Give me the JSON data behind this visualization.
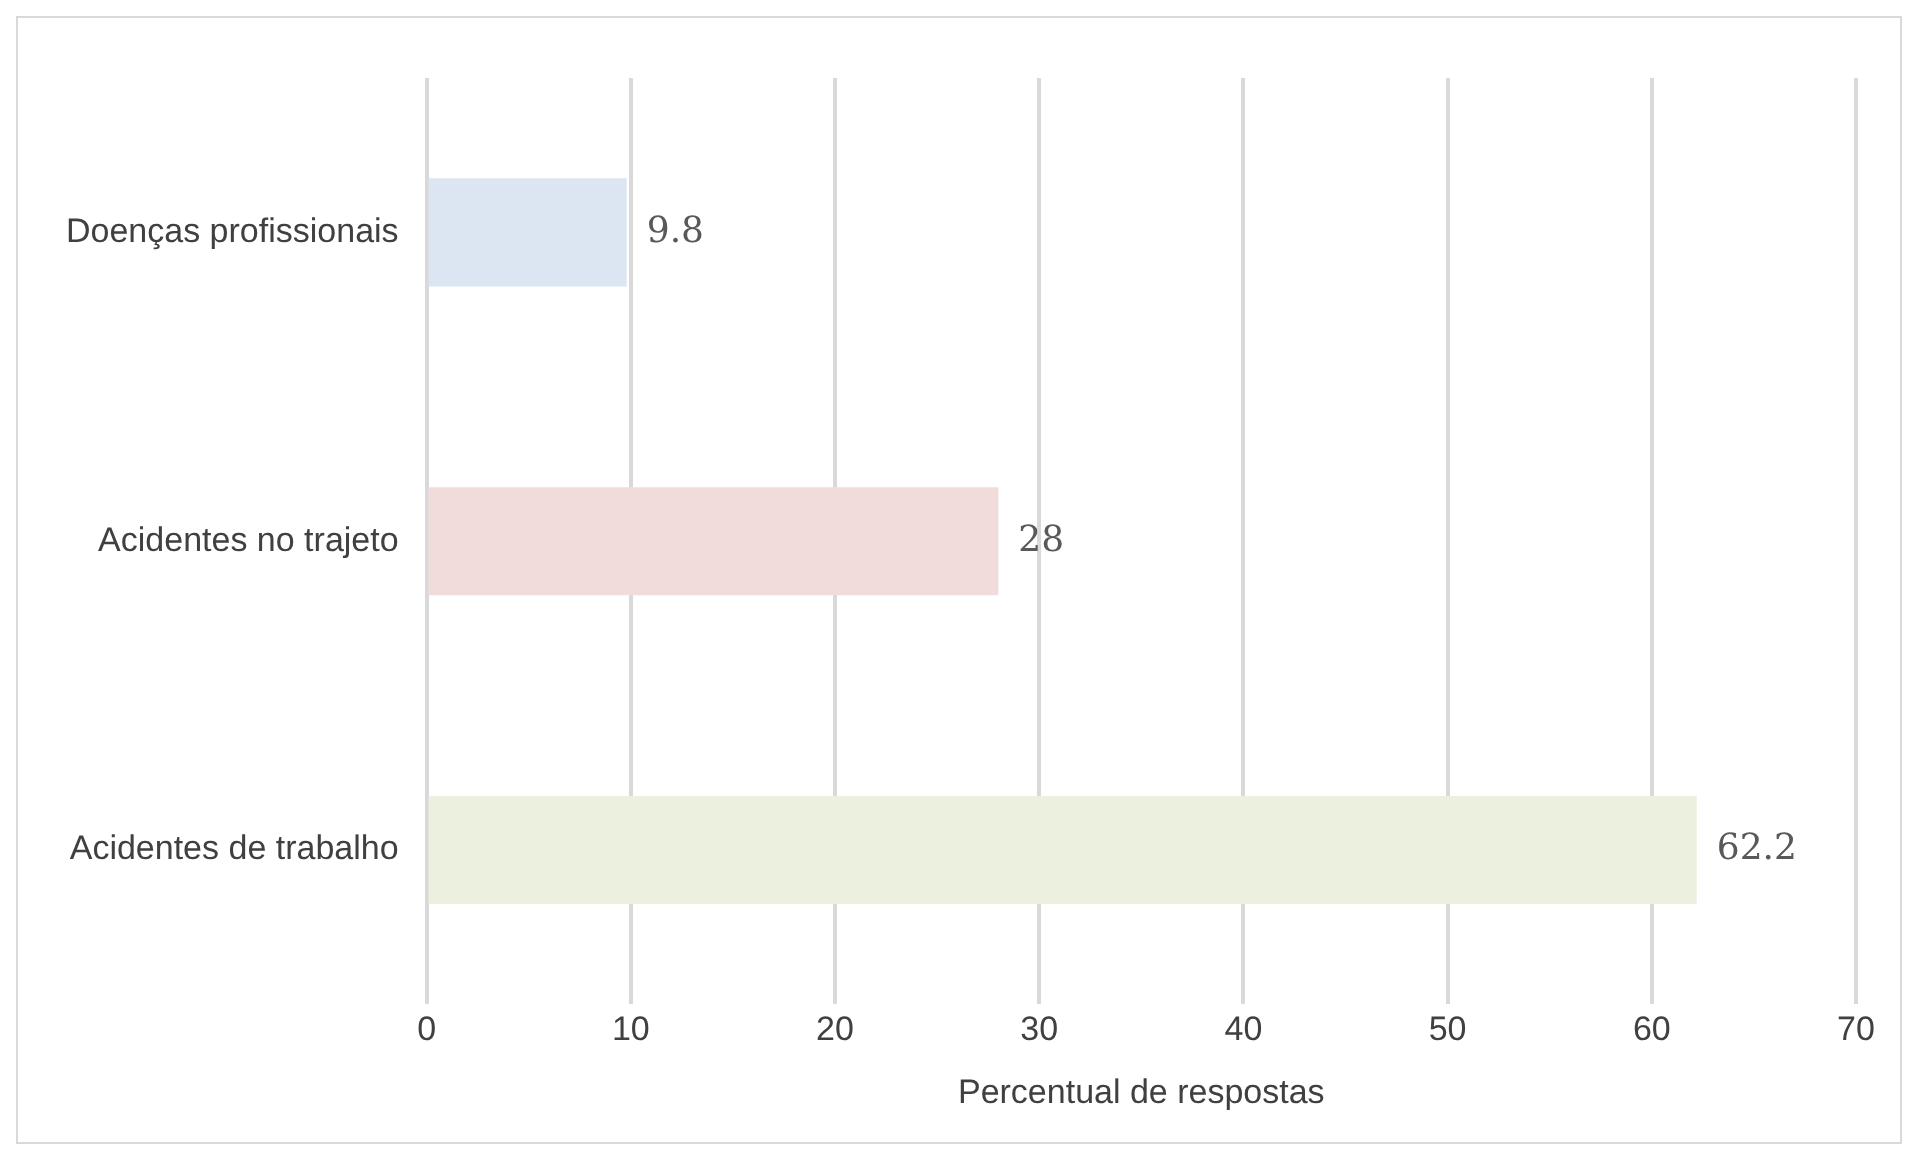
{
  "chart_data": {
    "type": "bar",
    "orientation": "horizontal",
    "xlabel": "Percentual de respostas",
    "categories": [
      "Doenças profissionais",
      "Acidentes no trajeto",
      "Acidentes de trabalho"
    ],
    "values": [
      9.8,
      28,
      62.2
    ],
    "colors": [
      "#dce6f2",
      "#f2dcdb",
      "#ebf1de"
    ],
    "xlim": [
      0,
      70
    ],
    "xticks": [
      0,
      10,
      20,
      30,
      40,
      50,
      60,
      70
    ],
    "grid": "x",
    "data_labels": true
  }
}
